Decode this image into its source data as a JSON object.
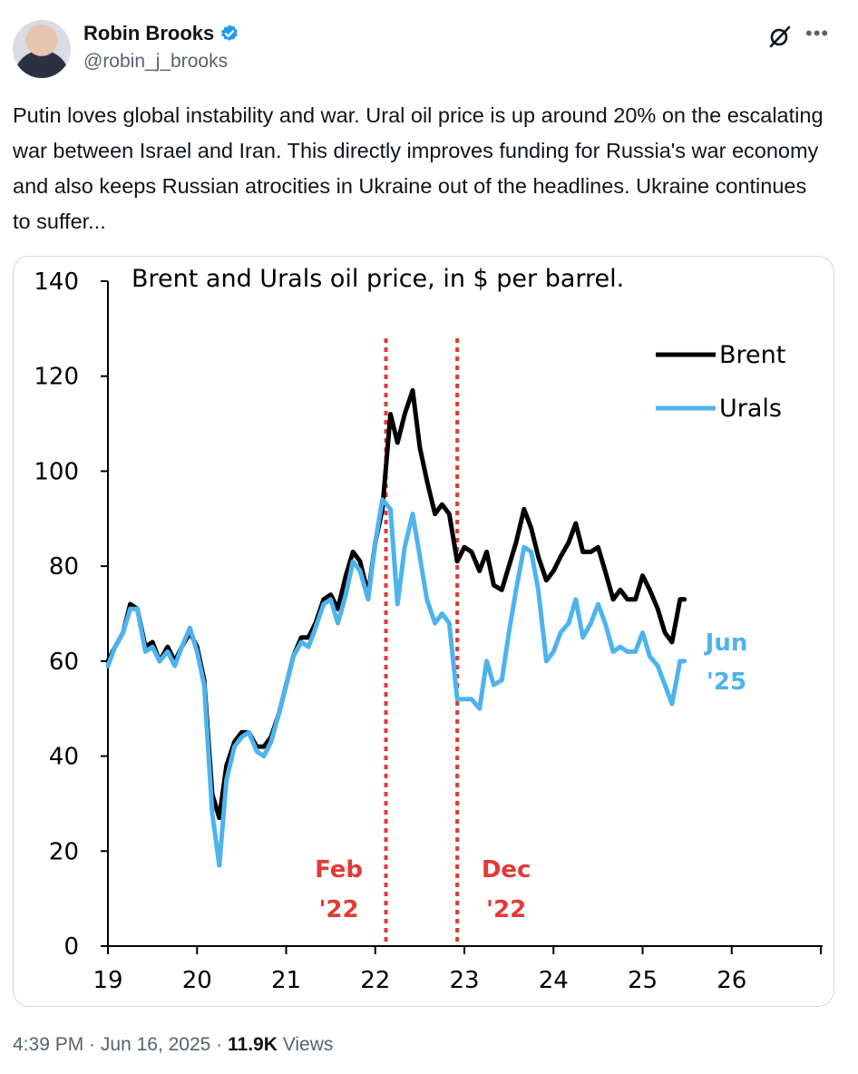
{
  "author": {
    "name": "Robin Brooks",
    "handle": "@robin_j_brooks",
    "verified_icon": "verified-badge-icon",
    "badge_color": "#1d9bf0"
  },
  "header_icons": {
    "grok": "grok-icon",
    "more": "more-icon"
  },
  "tweet": {
    "text": "Putin loves global instability and war. Ural oil price is up around 20% on the escalating war between Israel and Iran. This directly improves funding for Russia's war economy and also keeps Russian atrocities in Ukraine out of the headlines. Ukraine continues to suffer..."
  },
  "meta": {
    "time": "4:39 PM",
    "sep1": " · ",
    "date": "Jun 16, 2025",
    "sep2": " · ",
    "views_count": "11.9K",
    "views_label": " Views"
  },
  "chart_data": {
    "type": "line",
    "title": "Brent and Urals oil price, in $ per barrel.",
    "xlabel": "",
    "ylabel": "",
    "ylim": [
      0,
      140
    ],
    "xlim": [
      19,
      27
    ],
    "yticks": [
      "0",
      "20",
      "40",
      "60",
      "80",
      "100",
      "120",
      "140"
    ],
    "xticks": [
      "19",
      "20",
      "21",
      "22",
      "23",
      "24",
      "25",
      "26"
    ],
    "legend_position": "top-right",
    "grid": false,
    "series": [
      {
        "name": "Brent",
        "color": "#000000",
        "x": [
          19.0,
          19.08,
          19.17,
          19.25,
          19.33,
          19.42,
          19.5,
          19.58,
          19.67,
          19.75,
          19.83,
          19.92,
          20.0,
          20.08,
          20.17,
          20.25,
          20.33,
          20.42,
          20.5,
          20.58,
          20.67,
          20.75,
          20.83,
          20.92,
          21.0,
          21.08,
          21.17,
          21.25,
          21.33,
          21.42,
          21.5,
          21.58,
          21.67,
          21.75,
          21.83,
          21.92,
          22.0,
          22.08,
          22.17,
          22.25,
          22.33,
          22.42,
          22.5,
          22.58,
          22.67,
          22.75,
          22.83,
          22.92,
          23.0,
          23.08,
          23.17,
          23.25,
          23.33,
          23.42,
          23.5,
          23.58,
          23.67,
          23.75,
          23.83,
          23.92,
          24.0,
          24.08,
          24.17,
          24.25,
          24.33,
          24.42,
          24.5,
          24.58,
          24.67,
          24.75,
          24.83,
          24.92,
          25.0,
          25.08,
          25.17,
          25.25,
          25.33,
          25.42,
          25.47
        ],
        "y": [
          60,
          63,
          66,
          72,
          71,
          63,
          64,
          60,
          63,
          60,
          63,
          66,
          63,
          56,
          32,
          27,
          38,
          43,
          45,
          45,
          42,
          42,
          44,
          49,
          55,
          61,
          65,
          65,
          68,
          73,
          74,
          71,
          78,
          83,
          81,
          74,
          85,
          92,
          112,
          106,
          112,
          117,
          105,
          98,
          91,
          93,
          91,
          81,
          84,
          83,
          79,
          83,
          76,
          75,
          80,
          85,
          92,
          88,
          82,
          77,
          79,
          82,
          85,
          89,
          83,
          83,
          84,
          79,
          73,
          75,
          73,
          73,
          78,
          75,
          71,
          66,
          64,
          73,
          73
        ]
      },
      {
        "name": "Urals",
        "color": "#4db3ef",
        "x": [
          19.0,
          19.08,
          19.17,
          19.25,
          19.33,
          19.42,
          19.5,
          19.58,
          19.67,
          19.75,
          19.83,
          19.92,
          20.0,
          20.08,
          20.17,
          20.25,
          20.33,
          20.42,
          20.5,
          20.58,
          20.67,
          20.75,
          20.83,
          20.92,
          21.0,
          21.08,
          21.17,
          21.25,
          21.33,
          21.42,
          21.5,
          21.58,
          21.67,
          21.75,
          21.83,
          21.92,
          22.0,
          22.08,
          22.17,
          22.25,
          22.33,
          22.42,
          22.5,
          22.58,
          22.67,
          22.75,
          22.83,
          22.92,
          23.0,
          23.08,
          23.17,
          23.25,
          23.33,
          23.42,
          23.5,
          23.58,
          23.67,
          23.75,
          23.83,
          23.92,
          24.0,
          24.08,
          24.17,
          24.25,
          24.33,
          24.42,
          24.5,
          24.58,
          24.67,
          24.75,
          24.83,
          24.92,
          25.0,
          25.08,
          25.17,
          25.25,
          25.33,
          25.42,
          25.47
        ],
        "y": [
          59,
          63,
          66,
          71,
          71,
          62,
          63,
          60,
          62,
          59,
          63,
          67,
          62,
          55,
          28,
          17,
          35,
          42,
          44,
          45,
          41,
          40,
          43,
          49,
          55,
          61,
          64,
          63,
          67,
          72,
          73,
          68,
          74,
          81,
          79,
          73,
          85,
          94,
          92,
          72,
          84,
          91,
          82,
          73,
          68,
          70,
          68,
          52,
          52,
          52,
          50,
          60,
          55,
          56,
          66,
          75,
          84,
          83,
          75,
          60,
          62,
          66,
          68,
          73,
          65,
          68,
          72,
          68,
          62,
          63,
          62,
          62,
          66,
          61,
          59,
          55,
          51,
          60,
          60
        ]
      }
    ],
    "annotations": [
      {
        "x": 22.12,
        "label_line1": "Feb",
        "label_line2": "'22",
        "color": "#e53935"
      },
      {
        "x": 22.92,
        "label_line1": "Dec",
        "label_line2": "'22",
        "color": "#e53935"
      },
      {
        "label_line1": "Jun",
        "label_line2": "'25",
        "color": "#4db3ef"
      }
    ]
  }
}
